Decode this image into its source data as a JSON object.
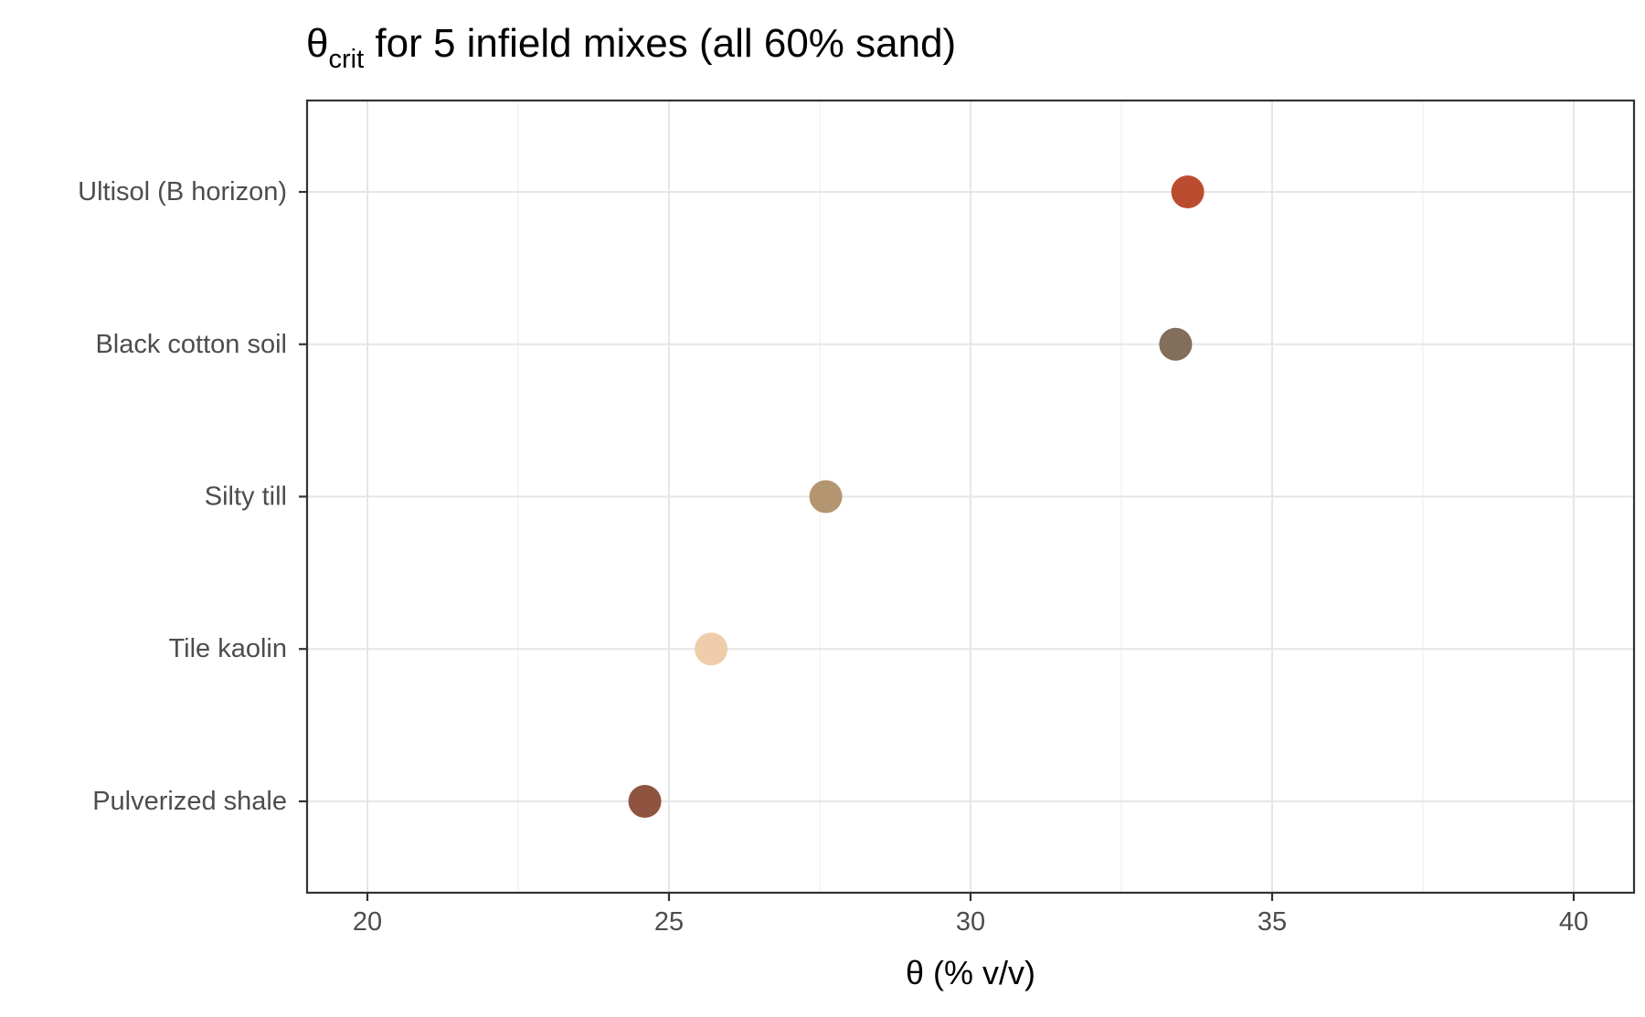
{
  "chart_data": {
    "type": "scatter",
    "title": {
      "symbol": "θ",
      "subscript": "crit",
      "rest": " for 5 infield mixes (all 60% sand)"
    },
    "xlabel": "θ (% v/v)",
    "ylabel": "",
    "xlim": [
      19,
      41
    ],
    "xticks": [
      20,
      25,
      30,
      35,
      40
    ],
    "grid": true,
    "legend": "none",
    "categories": [
      "Pulverized shale",
      "Tile kaolin",
      "Silty till",
      "Black cotton soil",
      "Ultisol (B horizon)"
    ],
    "points": [
      {
        "category": "Pulverized shale",
        "x": 24.6,
        "color": "#8f5440"
      },
      {
        "category": "Tile kaolin",
        "x": 25.7,
        "color": "#efcdaa"
      },
      {
        "category": "Silty till",
        "x": 27.6,
        "color": "#b3956f"
      },
      {
        "category": "Black cotton soil",
        "x": 33.4,
        "color": "#836d5b"
      },
      {
        "category": "Ultisol (B horizon)",
        "x": 33.6,
        "color": "#bb4c2f"
      }
    ]
  }
}
